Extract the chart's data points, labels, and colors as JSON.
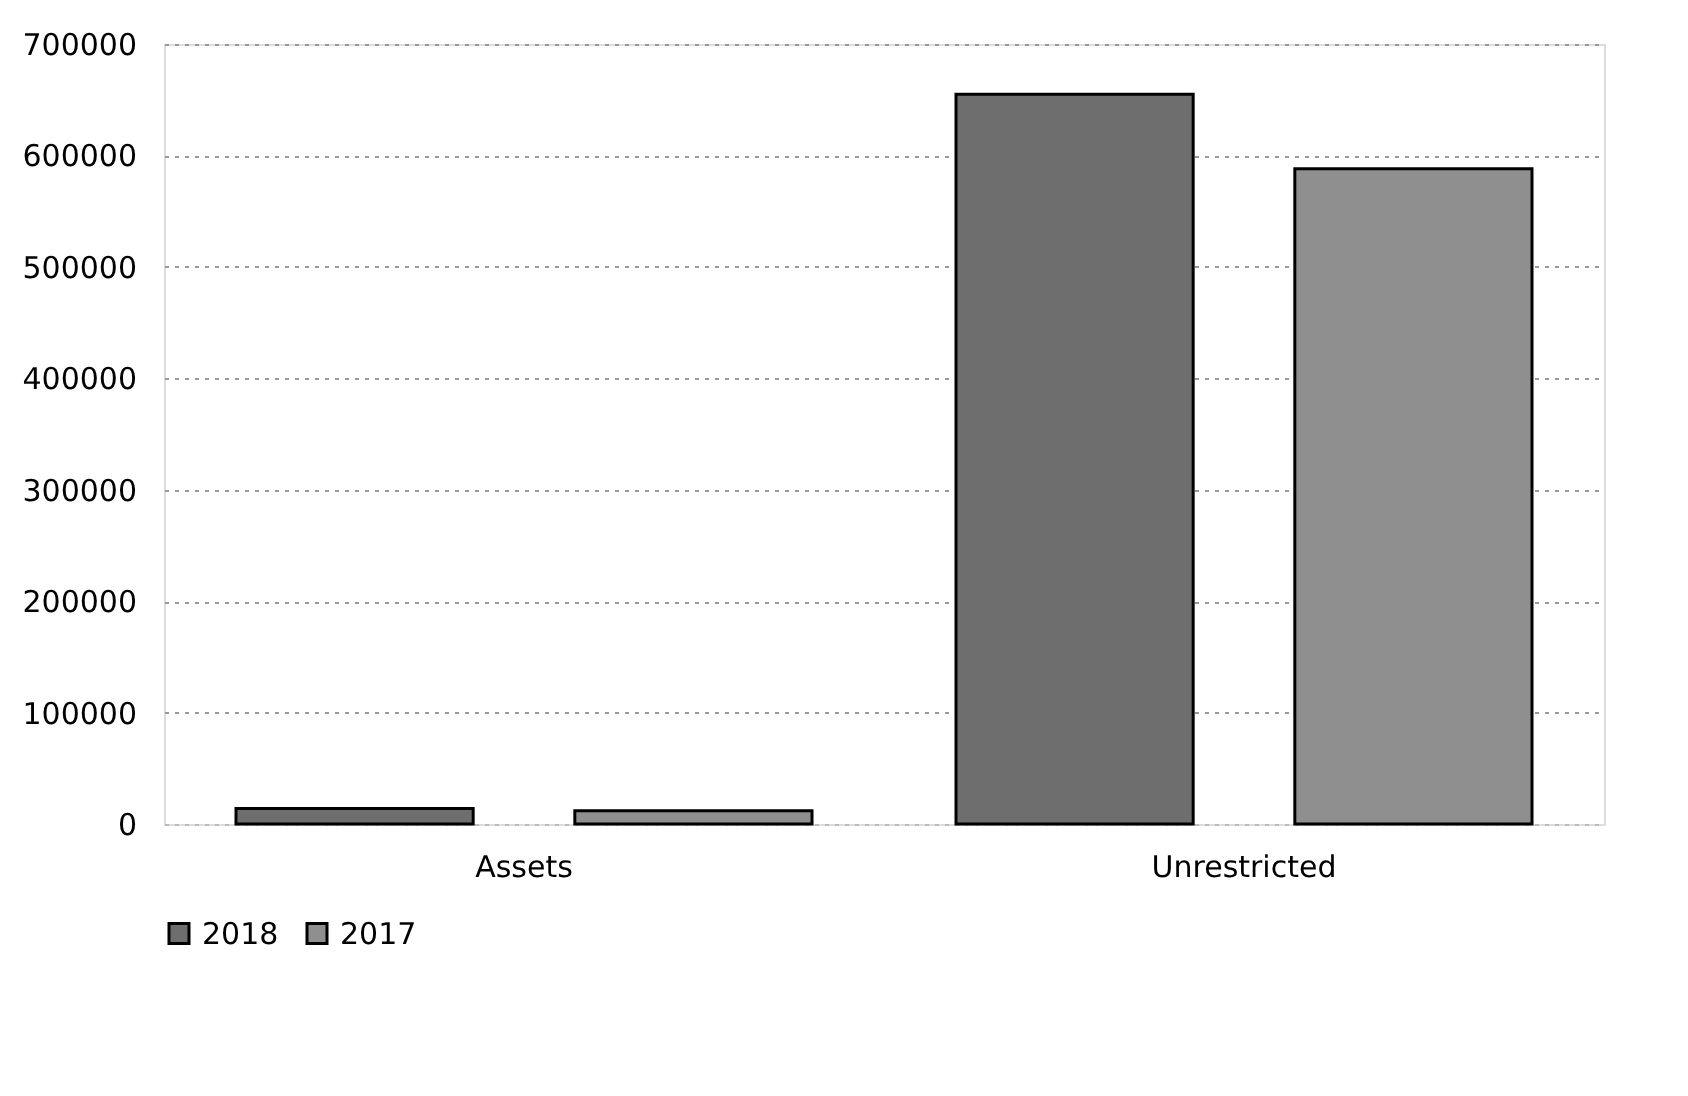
{
  "chart_data": {
    "type": "bar",
    "categories": [
      "Assets",
      "Unrestricted"
    ],
    "series": [
      {
        "name": "2018",
        "color": "#6e6e6e",
        "values": [
          14000,
          655000
        ]
      },
      {
        "name": "2017",
        "color": "#8f8f8f",
        "values": [
          12000,
          588000
        ]
      }
    ],
    "ylim": [
      0,
      700000
    ],
    "yticks": [
      0,
      100000,
      200000,
      300000,
      400000,
      500000,
      600000,
      700000
    ],
    "grid": "y",
    "legend": "bottom"
  }
}
